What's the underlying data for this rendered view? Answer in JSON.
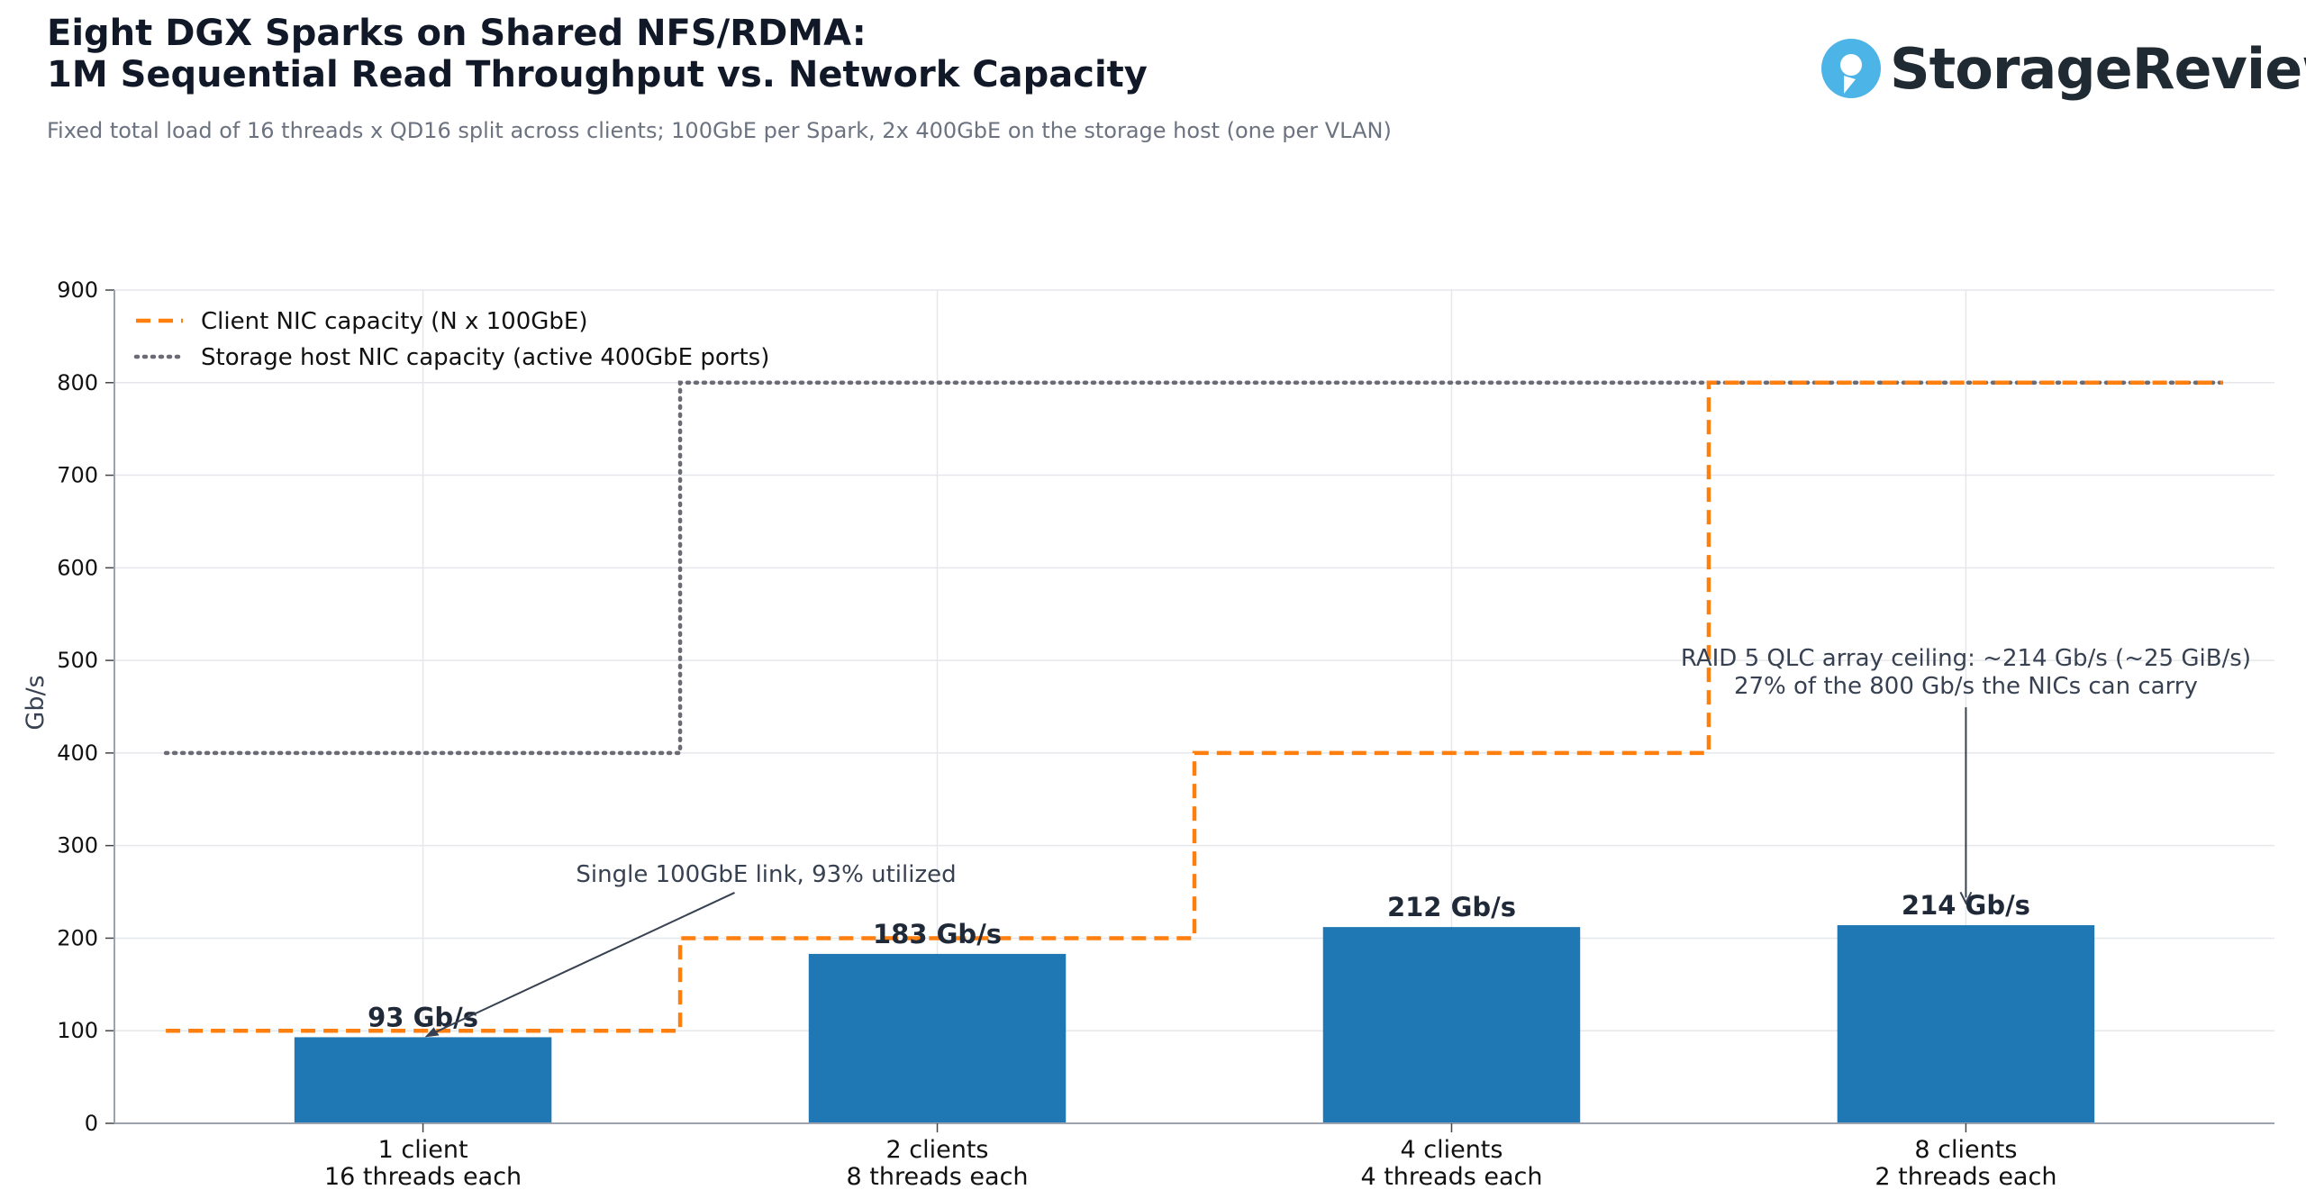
{
  "header": {
    "title_line1": "Eight DGX Sparks on Shared NFS/RDMA:",
    "title_line2": "1M Sequential Read Throughput vs. Network Capacity",
    "subtitle": "Fixed total load of 16 threads x QD16 split across clients; 100GbE per Spark, 2x 400GbE on the storage host (one per VLAN)"
  },
  "brand": {
    "name": "StorageReview",
    "logo_icon": "storagereview-logo-icon",
    "logo_color": "#4cb4e7"
  },
  "colors": {
    "bar": "#1f77b4",
    "client_nic": "#ff7f0e",
    "storage_nic": "#6b6b75",
    "grid": "#e5e7eb",
    "axis": "#9ca3af"
  },
  "chart_data": {
    "type": "bar",
    "categories": [
      [
        "1 client",
        "16 threads each"
      ],
      [
        "2 clients",
        "8 threads each"
      ],
      [
        "4 clients",
        "4 threads each"
      ],
      [
        "8 clients",
        "2 threads each"
      ]
    ],
    "values": [
      93,
      183,
      212,
      214
    ],
    "value_labels": [
      "93 Gb/s",
      "183 Gb/s",
      "212 Gb/s",
      "214 Gb/s"
    ],
    "ylabel": "Gb/s",
    "ylim": [
      0,
      900
    ],
    "yticks": [
      0,
      100,
      200,
      300,
      400,
      500,
      600,
      700,
      800,
      900
    ],
    "grid": true,
    "legend_position": "top-left",
    "step_lines": [
      {
        "name": "Client NIC capacity (N x 100GbE)",
        "style": "dashed",
        "values": [
          100,
          200,
          400,
          800
        ]
      },
      {
        "name": "Storage host NIC capacity (active 400GbE ports)",
        "style": "dotted",
        "values": [
          400,
          800,
          800,
          800
        ]
      }
    ],
    "annotations": [
      {
        "lines": [
          "Single 100GbE link, 93% utilized"
        ],
        "target_category": 0,
        "target_value": 93
      },
      {
        "lines": [
          "RAID 5 QLC array ceiling: ~214 Gb/s (~25 GiB/s)",
          "27% of the 800 Gb/s the NICs can carry"
        ],
        "target_category": 3,
        "target_value": 240
      }
    ]
  }
}
